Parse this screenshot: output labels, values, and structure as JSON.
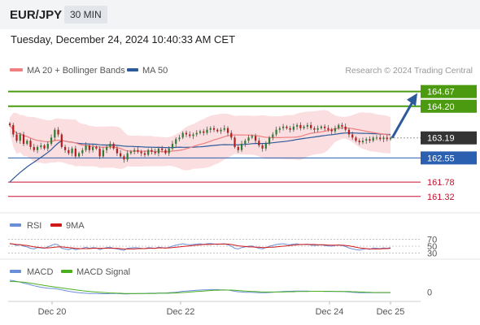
{
  "header": {
    "symbol": "EUR/JPY",
    "timeframe": "30 MIN",
    "datetime": "Tuesday, December 24, 2024 10:40:33 AM CET"
  },
  "legend": {
    "ma20_label": "MA 20 + Bollinger Bands",
    "ma50_label": "MA 50",
    "ma20_color": "#f08080",
    "ma50_color": "#2d5a9b",
    "credit": "Research © 2024 Trading Central"
  },
  "rsi_legend": {
    "rsi_label": "RSI",
    "ma_label": "9MA",
    "rsi_color": "#6a8fd8",
    "ma_color": "#d01818"
  },
  "macd_legend": {
    "macd_label": "MACD",
    "signal_label": "MACD Signal",
    "macd_color": "#6a8fd8",
    "signal_color": "#4caf20"
  },
  "colors": {
    "resistance": "#4c9a10",
    "support": "#2b5fb0",
    "support_red": "#c8102e",
    "current": "#333333",
    "arrow": "#2d5a9b",
    "band": "#fadadd"
  },
  "chart_data": [
    {
      "type": "candlestick",
      "title": "EUR/JPY",
      "ylim": [
        160.9,
        165.05
      ],
      "levels": [
        {
          "value": 164.67,
          "label": "164.67",
          "kind": "resistance"
        },
        {
          "value": 164.2,
          "label": "164.20",
          "kind": "resistance"
        },
        {
          "value": 163.19,
          "label": "163.19",
          "kind": "current"
        },
        {
          "value": 162.55,
          "label": "162.55",
          "kind": "support"
        },
        {
          "value": 161.78,
          "label": "161.78",
          "kind": "support-minor"
        },
        {
          "value": 161.32,
          "label": "161.32",
          "kind": "support-minor"
        }
      ],
      "x_ticks": [
        "Dec 20",
        "Dec 22",
        "Dec 24",
        "Dec 25"
      ],
      "close": [
        163.6,
        163.3,
        163.1,
        163.3,
        163.0,
        163.1,
        162.9,
        162.8,
        162.9,
        162.95,
        162.85,
        163.0,
        163.2,
        163.45,
        163.3,
        162.9,
        162.8,
        162.7,
        162.85,
        162.6,
        162.7,
        162.8,
        162.95,
        162.8,
        162.9,
        162.85,
        162.6,
        162.8,
        162.9,
        163.0,
        162.85,
        162.7,
        162.6,
        162.5,
        162.7,
        162.75,
        162.8,
        162.75,
        162.7,
        162.65,
        162.8,
        162.75,
        162.7,
        162.85,
        162.8,
        162.7,
        162.85,
        163.0,
        163.15,
        163.2,
        163.35,
        163.3,
        163.25,
        163.3,
        163.35,
        163.4,
        163.35,
        163.45,
        163.5,
        163.45,
        163.4,
        163.45,
        163.5,
        163.35,
        163.2,
        162.9,
        162.8,
        163.0,
        163.1,
        163.2,
        163.25,
        163.1,
        162.95,
        162.85,
        163.0,
        163.2,
        163.3,
        163.45,
        163.5,
        163.55,
        163.5,
        163.45,
        163.55,
        163.6,
        163.5,
        163.55,
        163.6,
        163.5,
        163.45,
        163.5,
        163.55,
        163.5,
        163.45,
        163.4,
        163.5,
        163.6,
        163.55,
        163.45,
        163.3,
        163.2,
        163.1,
        163.05,
        163.1,
        163.15,
        163.1,
        163.2,
        163.2,
        163.15,
        163.2,
        163.15,
        163.19
      ],
      "series": [
        {
          "name": "MA 20 + Bollinger Bands"
        },
        {
          "name": "MA 50"
        }
      ],
      "projection": {
        "from": 163.19,
        "to": 164.67
      }
    },
    {
      "type": "line",
      "title": "RSI",
      "y_ticks": [
        "70",
        "50",
        "30"
      ],
      "ylim": [
        15,
        85
      ],
      "series": [
        {
          "name": "RSI",
          "values": [
            58,
            56,
            52,
            55,
            50,
            48,
            44,
            42,
            46,
            45,
            44,
            48,
            52,
            56,
            54,
            44,
            42,
            40,
            44,
            40,
            42,
            44,
            47,
            44,
            46,
            45,
            40,
            44,
            46,
            47,
            44,
            42,
            40,
            38,
            44,
            45,
            46,
            45,
            44,
            43,
            46,
            45,
            44,
            47,
            46,
            44,
            47,
            50,
            53,
            55,
            57,
            55,
            54,
            55,
            56,
            57,
            55,
            57,
            58,
            56,
            55,
            56,
            57,
            54,
            50,
            44,
            42,
            46,
            48,
            50,
            51,
            47,
            44,
            42,
            46,
            50,
            52,
            55,
            56,
            57,
            55,
            54,
            56,
            57,
            54,
            55,
            56,
            53,
            52,
            53,
            54,
            52,
            51,
            50,
            52,
            54,
            52,
            49,
            45,
            42,
            40,
            39,
            41,
            43,
            41,
            45,
            44,
            43,
            45,
            44,
            46
          ]
        },
        {
          "name": "9MA",
          "values": [
            57,
            56,
            55,
            54,
            53,
            52,
            50,
            48,
            47,
            46,
            45,
            45,
            46,
            47,
            48,
            48,
            47,
            46,
            45,
            44,
            43,
            43,
            43,
            43,
            44,
            44,
            44,
            44,
            44,
            44,
            44,
            44,
            43,
            42,
            42,
            42,
            42,
            43,
            43,
            43,
            44,
            44,
            44,
            45,
            45,
            45,
            45,
            46,
            47,
            48,
            49,
            50,
            51,
            52,
            53,
            54,
            55,
            55,
            55,
            56,
            56,
            56,
            56,
            56,
            55,
            53,
            51,
            50,
            49,
            48,
            48,
            47,
            47,
            46,
            46,
            47,
            47,
            48,
            49,
            50,
            51,
            52,
            53,
            54,
            55,
            55,
            55,
            55,
            55,
            54,
            54,
            54,
            53,
            53,
            53,
            53,
            53,
            52,
            51,
            49,
            47,
            45,
            44,
            43,
            42,
            42,
            42,
            42,
            43,
            43,
            44
          ]
        }
      ]
    },
    {
      "type": "line",
      "title": "MACD",
      "y_ticks": [
        "0"
      ],
      "ylim": [
        -0.35,
        0.6
      ],
      "series": [
        {
          "name": "MACD",
          "values": [
            0.5,
            0.48,
            0.45,
            0.42,
            0.38,
            0.35,
            0.31,
            0.27,
            0.24,
            0.21,
            0.19,
            0.17,
            0.16,
            0.15,
            0.13,
            0.1,
            0.07,
            0.04,
            0.02,
            0.0,
            -0.02,
            -0.03,
            -0.04,
            -0.05,
            -0.05,
            -0.05,
            -0.06,
            -0.06,
            -0.06,
            -0.05,
            -0.05,
            -0.05,
            -0.06,
            -0.07,
            -0.07,
            -0.06,
            -0.06,
            -0.05,
            -0.05,
            -0.05,
            -0.04,
            -0.04,
            -0.04,
            -0.03,
            -0.03,
            -0.03,
            -0.02,
            -0.01,
            0.0,
            0.02,
            0.04,
            0.05,
            0.06,
            0.07,
            0.08,
            0.09,
            0.1,
            0.1,
            0.11,
            0.11,
            0.11,
            0.1,
            0.1,
            0.09,
            0.07,
            0.04,
            0.02,
            0.01,
            0.0,
            0.0,
            0.0,
            -0.01,
            -0.02,
            -0.02,
            -0.02,
            -0.01,
            0.0,
            0.01,
            0.02,
            0.03,
            0.04,
            0.04,
            0.05,
            0.05,
            0.05,
            0.05,
            0.05,
            0.04,
            0.04,
            0.04,
            0.04,
            0.03,
            0.03,
            0.03,
            0.03,
            0.03,
            0.03,
            0.02,
            0.01,
            0.0,
            -0.01,
            -0.02,
            -0.02,
            -0.02,
            -0.02,
            -0.02,
            -0.02,
            -0.02,
            -0.02,
            -0.02,
            -0.02
          ]
        },
        {
          "name": "MACD Signal",
          "values": [
            0.45,
            0.45,
            0.44,
            0.43,
            0.42,
            0.4,
            0.38,
            0.36,
            0.33,
            0.31,
            0.28,
            0.26,
            0.24,
            0.22,
            0.2,
            0.18,
            0.16,
            0.14,
            0.12,
            0.1,
            0.08,
            0.06,
            0.05,
            0.03,
            0.02,
            0.01,
            0.0,
            -0.01,
            -0.02,
            -0.03,
            -0.03,
            -0.04,
            -0.04,
            -0.05,
            -0.05,
            -0.05,
            -0.05,
            -0.05,
            -0.05,
            -0.05,
            -0.05,
            -0.05,
            -0.05,
            -0.04,
            -0.04,
            -0.04,
            -0.04,
            -0.03,
            -0.03,
            -0.02,
            -0.01,
            0.0,
            0.01,
            0.02,
            0.03,
            0.04,
            0.05,
            0.06,
            0.07,
            0.08,
            0.08,
            0.09,
            0.09,
            0.09,
            0.09,
            0.08,
            0.07,
            0.06,
            0.05,
            0.04,
            0.03,
            0.03,
            0.02,
            0.01,
            0.01,
            0.01,
            0.01,
            0.01,
            0.01,
            0.01,
            0.02,
            0.02,
            0.02,
            0.03,
            0.03,
            0.03,
            0.03,
            0.04,
            0.04,
            0.04,
            0.04,
            0.04,
            0.04,
            0.04,
            0.03,
            0.03,
            0.03,
            0.03,
            0.03,
            0.02,
            0.02,
            0.01,
            0.01,
            0.0,
            0.0,
            -0.01,
            -0.01,
            -0.01,
            -0.01,
            -0.01,
            -0.01
          ]
        }
      ]
    }
  ]
}
